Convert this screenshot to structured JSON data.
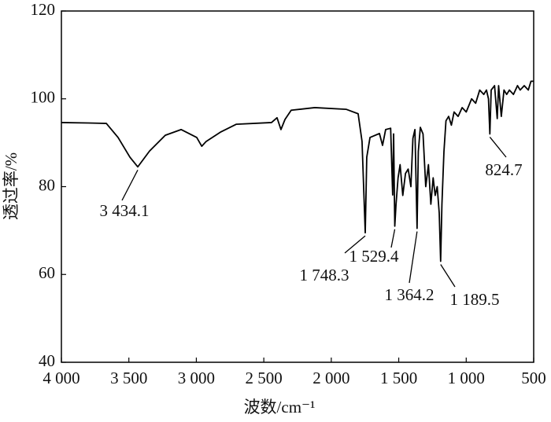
{
  "chart_data": {
    "type": "line",
    "x_label": "波数/cm⁻¹",
    "y_label": "透过率/%",
    "x": [
      4000,
      3800,
      3667,
      3580,
      3492,
      3434.1,
      3347,
      3230,
      3113,
      2997,
      2960,
      2927,
      2822,
      2705,
      2443,
      2402,
      2373,
      2343,
      2297,
      2122,
      1888,
      1801,
      1772,
      1748.3,
      1737,
      1713,
      1643,
      1620,
      1597,
      1560,
      1545,
      1538,
      1529.4,
      1520,
      1505,
      1490,
      1470,
      1450,
      1430,
      1410,
      1395,
      1380,
      1364.2,
      1355,
      1340,
      1320,
      1300,
      1280,
      1262,
      1245,
      1230,
      1215,
      1200,
      1189.5,
      1180,
      1165,
      1150,
      1130,
      1110,
      1090,
      1060,
      1030,
      1000,
      960,
      930,
      900,
      870,
      850,
      835,
      824.7,
      815,
      790,
      770,
      760,
      740,
      720,
      700,
      680,
      650,
      620,
      600,
      570,
      540,
      520,
      500
    ],
    "series": [
      {
        "color": "#000000",
        "values": [
          94.6,
          94.5,
          94.4,
          91.2,
          86.7,
          84.5,
          88.1,
          91.7,
          93.0,
          91.2,
          89.2,
          90.3,
          92.4,
          94.2,
          94.6,
          95.7,
          93.0,
          95.3,
          97.4,
          98.0,
          97.6,
          96.6,
          90.3,
          69.5,
          86.7,
          91.2,
          92.1,
          89.4,
          93.0,
          93.3,
          78.1,
          92.0,
          71.0,
          76,
          82,
          85,
          78,
          83,
          84,
          80,
          91,
          93,
          70.5,
          88,
          93.5,
          92,
          80,
          85,
          76,
          82,
          78,
          80,
          74,
          63,
          76,
          88,
          95,
          96,
          94,
          97,
          96,
          98,
          97,
          100,
          99,
          102,
          101,
          102,
          100,
          92,
          102,
          103,
          95.5,
          103,
          96,
          102,
          101,
          102,
          101,
          103,
          102,
          103,
          102,
          104,
          104
        ]
      }
    ],
    "xlim": [
      4000,
      500
    ],
    "ylim": [
      40,
      120
    ],
    "xticks": [
      {
        "value": 4000,
        "label": "4 000"
      },
      {
        "value": 3500,
        "label": "3 500"
      },
      {
        "value": 3000,
        "label": "3 000"
      },
      {
        "value": 2500,
        "label": "2 500"
      },
      {
        "value": 2000,
        "label": "2 000"
      },
      {
        "value": 1500,
        "label": "1 500"
      },
      {
        "value": 1000,
        "label": "1 000"
      },
      500
    ],
    "yticks": [
      40,
      60,
      80,
      100,
      120
    ],
    "annotations": [
      {
        "label": "3 434.1",
        "x": 3434.1,
        "y": 84.5
      },
      {
        "label": "1 748.3",
        "x": 1748.3,
        "y": 69.5
      },
      {
        "label": "1 529.4",
        "x": 1529.4,
        "y": 71.0
      },
      {
        "label": "1 364.2",
        "x": 1364.2,
        "y": 70.5
      },
      {
        "label": "1 189.5",
        "x": 1189.5,
        "y": 63
      },
      {
        "label": "824.7",
        "x": 824.7,
        "y": 92
      }
    ]
  }
}
